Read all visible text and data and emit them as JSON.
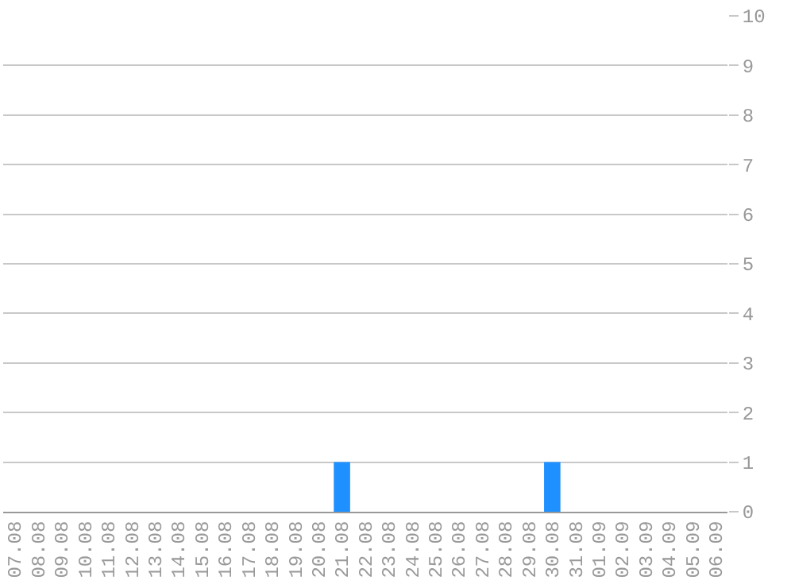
{
  "chart_data": {
    "type": "bar",
    "categories": [
      "07.08",
      "08.08",
      "09.08",
      "10.08",
      "11.08",
      "12.08",
      "13.08",
      "14.08",
      "15.08",
      "16.08",
      "17.08",
      "18.08",
      "19.08",
      "20.08",
      "21.08",
      "22.08",
      "23.08",
      "24.08",
      "25.08",
      "26.08",
      "27.08",
      "28.08",
      "29.08",
      "30.08",
      "31.08",
      "01.09",
      "02.09",
      "03.09",
      "04.09",
      "05.09",
      "06.09"
    ],
    "values": [
      0,
      0,
      0,
      0,
      0,
      0,
      0,
      0,
      0,
      0,
      0,
      0,
      0,
      0,
      1,
      0,
      0,
      0,
      0,
      0,
      0,
      0,
      0,
      1,
      0,
      0,
      0,
      0,
      0,
      0,
      0
    ],
    "color": "#1e90ff",
    "ylim": [
      0,
      10
    ],
    "yticks": [
      0,
      1,
      2,
      3,
      4,
      5,
      6,
      7,
      8,
      9,
      10
    ],
    "grid": "y",
    "legend": false
  }
}
